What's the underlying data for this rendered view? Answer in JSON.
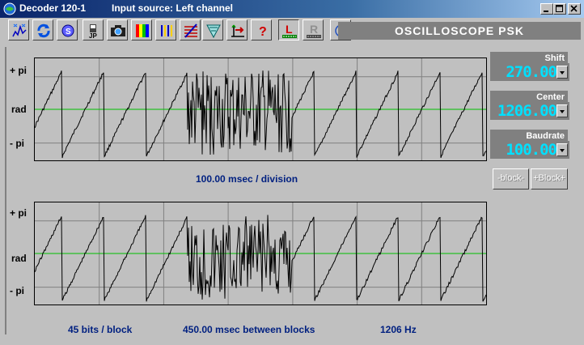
{
  "window": {
    "title": "Decoder 120-1",
    "subtitle": "Input source: Left channel",
    "controls": [
      "minimize",
      "maximize",
      "close"
    ]
  },
  "toolbar": {
    "buttons": [
      "spectrum-icon",
      "refresh-icon",
      "speed-icon",
      "save-icon",
      "camera-icon",
      "colors-icon",
      "bars-icon",
      "waterfall-icon",
      "filter-icon",
      "tuning-icon",
      "help-icon",
      "left-channel-icon",
      "right-channel-icon",
      "info-icon"
    ],
    "help_label": "?",
    "left_label": "L",
    "right_label": "R",
    "mode_title": "OSCILLOSCOPE  PSK"
  },
  "scope_top": {
    "y_labels": {
      "top": "+ pi",
      "mid": "rad",
      "bottom": "- pi"
    },
    "caption": "100.00 msec / division"
  },
  "scope_bottom": {
    "y_labels": {
      "top": "+ pi",
      "mid": "rad",
      "bottom": "- pi"
    }
  },
  "footer": {
    "bits": "45 bits / block",
    "between": "450.00 msec between blocks",
    "freq": "1206 Hz"
  },
  "controls": {
    "shift": {
      "label": "Shift",
      "value": "270.00"
    },
    "center": {
      "label": "Center",
      "value": "1206.00"
    },
    "baudrate": {
      "label": "Baudrate",
      "value": "100.00"
    }
  },
  "block_buttons": {
    "minus": "-block-",
    "plus": "+Block+"
  },
  "colors": {
    "trace": "#000000",
    "center_line": "#00c000",
    "grid": "#808080",
    "readout": "#00e0ff",
    "caption": "#002080"
  }
}
